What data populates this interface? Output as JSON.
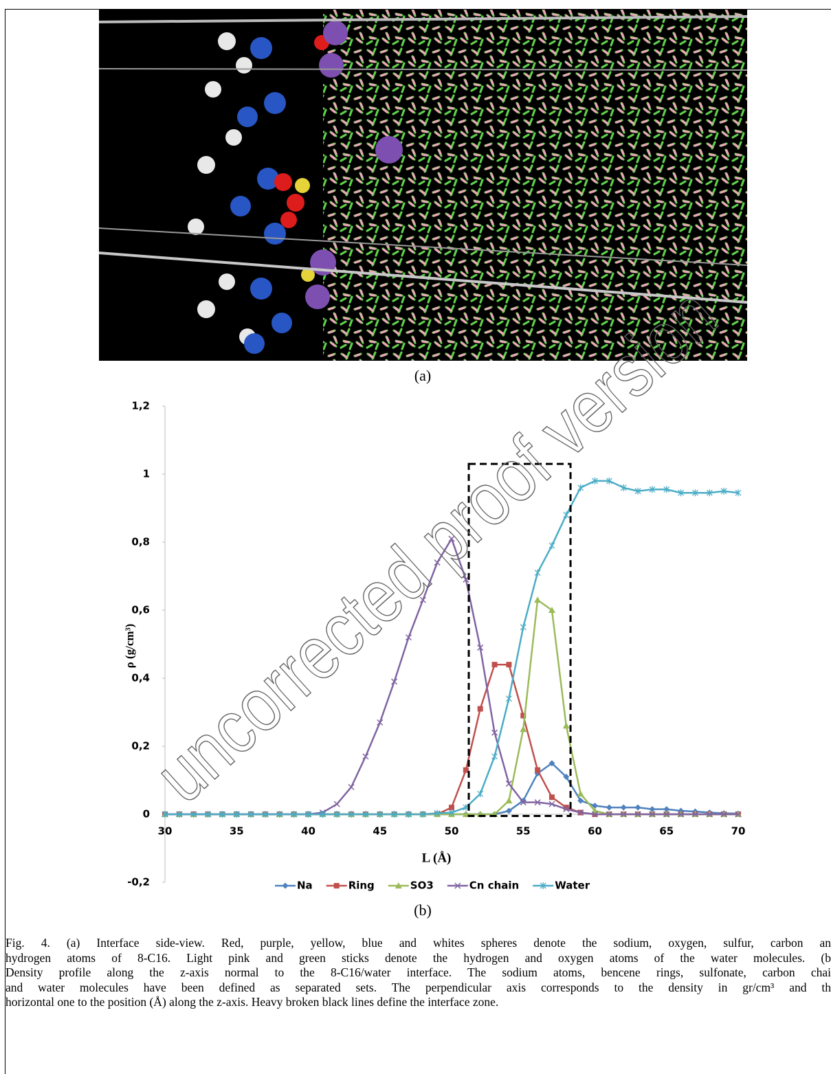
{
  "figure": {
    "label_a": "(a)",
    "label_b": "(b)",
    "watermark": "uncorrected proof version",
    "caption_lines": [
      "Fig. 4. (a) Interface side-view. Red, purple, yellow, blue and whites spheres denote the sodium, oxygen, sulfur, carbon an",
      "hydrogen atoms of 8-C16. Light pink and green sticks denote the hydrogen and oxygen atoms of the water molecules. (b",
      "Density profile along the z-axis normal to the 8-C16/water interface. The sodium atoms, bencene rings, sulfonate, carbon chai",
      "and water molecules have been defined as separated sets. The perpendicular axis corresponds to the density in gr/cm³ and th",
      "horizontal one to the position (Å) along the z-axis. Heavy broken black lines define the interface zone."
    ]
  },
  "chart_data": {
    "type": "line",
    "x_label": "L (Å)",
    "y_label": "ρ (g/cm³)",
    "x": [
      30,
      31,
      32,
      33,
      34,
      35,
      36,
      37,
      38,
      39,
      40,
      41,
      42,
      43,
      44,
      45,
      46,
      47,
      48,
      49,
      50,
      51,
      52,
      53,
      54,
      55,
      56,
      57,
      58,
      59,
      60,
      61,
      62,
      63,
      64,
      65,
      66,
      67,
      68,
      69,
      70
    ],
    "series": [
      {
        "name": "Na",
        "color": "#4f81bd",
        "marker": "diamond",
        "values": [
          0,
          0,
          0,
          0,
          0,
          0,
          0,
          0,
          0,
          0,
          0,
          0,
          0,
          0,
          0,
          0,
          0,
          0,
          0,
          0,
          0,
          0,
          0,
          0,
          0.01,
          0.04,
          0.12,
          0.15,
          0.11,
          0.04,
          0.025,
          0.02,
          0.02,
          0.02,
          0.015,
          0.015,
          0.01,
          0.008,
          0.005,
          0.003,
          0.002
        ]
      },
      {
        "name": "Ring",
        "color": "#c0504d",
        "marker": "square",
        "values": [
          0,
          0,
          0,
          0,
          0,
          0,
          0,
          0,
          0,
          0,
          0,
          0,
          0,
          0,
          0,
          0,
          0,
          0,
          0,
          0,
          0.02,
          0.13,
          0.31,
          0.44,
          0.44,
          0.29,
          0.13,
          0.05,
          0.02,
          0.005,
          0,
          0,
          0,
          0,
          0,
          0,
          0,
          0,
          0,
          0,
          0
        ]
      },
      {
        "name": "SO3",
        "color": "#9bbb59",
        "marker": "triangle",
        "values": [
          0,
          0,
          0,
          0,
          0,
          0,
          0,
          0,
          0,
          0,
          0,
          0,
          0,
          0,
          0,
          0,
          0,
          0,
          0,
          0,
          0,
          0,
          0,
          0,
          0.04,
          0.25,
          0.63,
          0.6,
          0.26,
          0.06,
          0.01,
          0,
          0,
          0,
          0,
          0,
          0,
          0,
          0,
          0,
          0
        ]
      },
      {
        "name": "Cn chain",
        "color": "#8064a2",
        "marker": "x",
        "values": [
          0,
          0,
          0,
          0,
          0,
          0,
          0,
          0,
          0,
          0,
          0,
          0.005,
          0.03,
          0.08,
          0.17,
          0.27,
          0.39,
          0.52,
          0.63,
          0.74,
          0.81,
          0.69,
          0.49,
          0.24,
          0.09,
          0.035,
          0.035,
          0.03,
          0.015,
          0.005,
          0,
          0,
          0,
          0,
          0,
          0,
          0,
          0,
          0,
          0,
          0
        ]
      },
      {
        "name": "Water",
        "color": "#4bacc6",
        "marker": "star",
        "values": [
          0,
          0,
          0,
          0,
          0,
          0,
          0,
          0,
          0,
          0,
          0,
          0,
          0,
          0,
          0,
          0,
          0,
          0,
          0,
          0.003,
          0.005,
          0.02,
          0.06,
          0.17,
          0.34,
          0.55,
          0.71,
          0.79,
          0.88,
          0.96,
          0.98,
          0.98,
          0.96,
          0.95,
          0.955,
          0.955,
          0.945,
          0.945,
          0.945,
          0.95,
          0.945
        ]
      }
    ],
    "xlim": [
      30,
      70
    ],
    "ylim": [
      -0.2,
      1.2
    ],
    "xticks": [
      30,
      35,
      40,
      45,
      50,
      55,
      60,
      65,
      70
    ],
    "yticks": [
      {
        "value": -0.2,
        "label": "-0,2"
      },
      0,
      {
        "value": 0.2,
        "label": "0,2"
      },
      {
        "value": 0.4,
        "label": "0,4"
      },
      {
        "value": 0.6,
        "label": "0,6"
      },
      {
        "value": 0.8,
        "label": "0,8"
      },
      1,
      {
        "value": 1.2,
        "label": "1,2"
      }
    ],
    "grid": false,
    "legend": "bottom",
    "interface_zone": {
      "x": [
        51.2,
        58.3
      ],
      "y": [
        -0.005,
        1.03
      ]
    }
  }
}
